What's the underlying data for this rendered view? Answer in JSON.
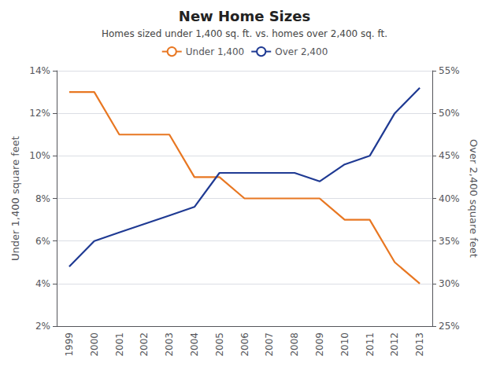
{
  "chart_data": {
    "type": "line",
    "title": "New Home Sizes",
    "subtitle": "Homes sized under 1,400 sq. ft. vs. homes over 2,400 sq. ft.",
    "categories": [
      "1999",
      "2000",
      "2001",
      "2002",
      "2003",
      "2004",
      "2005",
      "2006",
      "2007",
      "2008",
      "2009",
      "2010",
      "2011",
      "2012",
      "2013"
    ],
    "series": [
      {
        "name": "Under 1,400",
        "color": "#E87722",
        "axis": "y",
        "values": [
          0.13,
          0.13,
          0.11,
          0.11,
          0.11,
          0.09,
          0.09,
          0.08,
          0.08,
          0.08,
          0.08,
          0.07,
          0.07,
          0.05,
          0.04
        ]
      },
      {
        "name": "Over 2,400",
        "color": "#1F3A93",
        "axis": "y2",
        "values": [
          0.32,
          0.35,
          0.36,
          0.37,
          0.38,
          0.39,
          0.43,
          0.43,
          0.43,
          0.43,
          0.42,
          0.44,
          0.45,
          0.5,
          0.53
        ]
      }
    ],
    "ylabel": "Under 1,400 square feet",
    "y2label": "Over 2,400 square feet",
    "ylim": [
      0.02,
      0.14
    ],
    "yticks": [
      {
        "value": 0.02,
        "label": "2%"
      },
      {
        "value": 0.04,
        "label": "4%"
      },
      {
        "value": 0.06,
        "label": "6%"
      },
      {
        "value": 0.08,
        "label": "8%"
      },
      {
        "value": 0.1,
        "label": "10%"
      },
      {
        "value": 0.12,
        "label": "12%"
      },
      {
        "value": 0.14,
        "label": "14%"
      }
    ],
    "y2lim": [
      0.25,
      0.55
    ],
    "y2ticks": [
      {
        "value": 0.25,
        "label": "25%"
      },
      {
        "value": 0.3,
        "label": "30%"
      },
      {
        "value": 0.35,
        "label": "35%"
      },
      {
        "value": 0.4,
        "label": "40%"
      },
      {
        "value": 0.45,
        "label": "45%"
      },
      {
        "value": 0.5,
        "label": "50%"
      },
      {
        "value": 0.55,
        "label": "55%"
      }
    ],
    "grid": true,
    "legend": "top"
  }
}
